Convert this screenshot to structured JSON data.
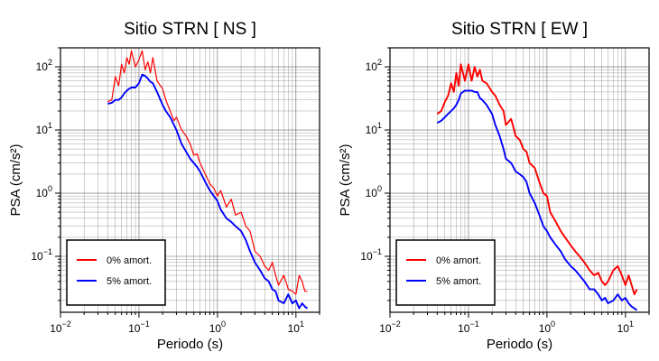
{
  "chart_data": [
    {
      "type": "line",
      "title": "Sitio STRN [ NS ]",
      "xlabel": "Periodo (s)",
      "ylabel": "PSA (cm/s²)",
      "xscale": "log",
      "yscale": "log",
      "xlim": [
        0.01,
        20
      ],
      "ylim": [
        0.013,
        200
      ],
      "x_ticks": [
        "10^-2",
        "10^-1",
        "10^0",
        "10^1"
      ],
      "y_ticks": [
        "10^-1",
        "10^0",
        "10^1",
        "10^2"
      ],
      "grid": true,
      "legend": "bottom-left",
      "series": [
        {
          "name": "0% amort.",
          "color": "#ff0000",
          "x": [
            0.04,
            0.045,
            0.05,
            0.055,
            0.06,
            0.065,
            0.07,
            0.075,
            0.08,
            0.09,
            0.1,
            0.11,
            0.12,
            0.13,
            0.14,
            0.15,
            0.17,
            0.2,
            0.22,
            0.25,
            0.28,
            0.3,
            0.35,
            0.4,
            0.45,
            0.5,
            0.55,
            0.6,
            0.7,
            0.8,
            0.9,
            1.0,
            1.1,
            1.3,
            1.5,
            1.7,
            2.0,
            2.3,
            2.6,
            3.0,
            3.5,
            4.0,
            4.5,
            5.0,
            5.5,
            6.0,
            7.0,
            8.0,
            9.0,
            10.0,
            11.0,
            12.0,
            13.0,
            14.0
          ],
          "values": [
            28,
            30,
            70,
            50,
            110,
            80,
            140,
            110,
            180,
            100,
            130,
            180,
            90,
            120,
            80,
            140,
            60,
            45,
            30,
            20,
            14,
            16,
            10,
            8,
            6,
            4,
            4.2,
            3,
            2,
            1.4,
            1.2,
            0.9,
            1.1,
            0.6,
            0.8,
            0.45,
            0.5,
            0.3,
            0.25,
            0.12,
            0.1,
            0.07,
            0.06,
            0.08,
            0.05,
            0.035,
            0.05,
            0.03,
            0.028,
            0.025,
            0.05,
            0.04,
            0.028,
            0.028
          ]
        },
        {
          "name": "5% amort.",
          "color": "#0000ff",
          "x": [
            0.04,
            0.045,
            0.05,
            0.055,
            0.06,
            0.065,
            0.07,
            0.075,
            0.08,
            0.09,
            0.1,
            0.11,
            0.12,
            0.13,
            0.14,
            0.15,
            0.17,
            0.2,
            0.22,
            0.25,
            0.28,
            0.3,
            0.35,
            0.4,
            0.45,
            0.5,
            0.55,
            0.6,
            0.7,
            0.8,
            0.9,
            1.0,
            1.1,
            1.3,
            1.5,
            1.7,
            2.0,
            2.3,
            2.6,
            3.0,
            3.5,
            4.0,
            4.5,
            5.0,
            5.5,
            6.0,
            7.0,
            8.0,
            9.0,
            10.0,
            11.0,
            12.0,
            13.0,
            14.0
          ],
          "values": [
            26,
            27,
            30,
            30,
            33,
            38,
            42,
            45,
            47,
            47,
            55,
            75,
            72,
            65,
            58,
            55,
            40,
            25,
            20,
            16,
            12,
            10,
            6,
            4.5,
            3.5,
            3,
            2.6,
            2.2,
            1.5,
            1.1,
            0.9,
            0.75,
            0.55,
            0.4,
            0.35,
            0.3,
            0.25,
            0.18,
            0.12,
            0.08,
            0.06,
            0.045,
            0.04,
            0.03,
            0.028,
            0.02,
            0.018,
            0.025,
            0.018,
            0.02,
            0.015,
            0.018,
            0.016,
            0.015
          ]
        }
      ]
    },
    {
      "type": "line",
      "title": "Sitio STRN [ EW ]",
      "xlabel": "Periodo (s)",
      "ylabel": "PSA (cm/s²)",
      "xscale": "log",
      "yscale": "log",
      "xlim": [
        0.01,
        20
      ],
      "ylim": [
        0.013,
        200
      ],
      "x_ticks": [
        "10^-2",
        "10^-1",
        "10^0",
        "10^1"
      ],
      "y_ticks": [
        "10^-1",
        "10^0",
        "10^1",
        "10^2"
      ],
      "grid": true,
      "legend": "bottom-left",
      "series": [
        {
          "name": "0% amort.",
          "color": "#ff0000",
          "x": [
            0.04,
            0.045,
            0.05,
            0.055,
            0.06,
            0.065,
            0.07,
            0.075,
            0.08,
            0.09,
            0.1,
            0.11,
            0.12,
            0.13,
            0.14,
            0.15,
            0.17,
            0.2,
            0.22,
            0.25,
            0.28,
            0.3,
            0.35,
            0.4,
            0.45,
            0.5,
            0.55,
            0.6,
            0.7,
            0.8,
            0.9,
            1.0,
            1.1,
            1.3,
            1.5,
            1.7,
            2.0,
            2.3,
            2.6,
            3.0,
            3.5,
            4.0,
            4.5,
            5.0,
            5.5,
            6.0,
            7.0,
            8.0,
            9.0,
            10.0,
            11.0,
            12.0,
            13.0,
            14.0
          ],
          "values": [
            18,
            20,
            28,
            35,
            55,
            40,
            80,
            50,
            110,
            60,
            110,
            60,
            100,
            70,
            90,
            60,
            55,
            40,
            35,
            25,
            20,
            12,
            15,
            8,
            7,
            5,
            4.5,
            3,
            2.5,
            1.5,
            1.0,
            0.9,
            0.5,
            0.35,
            0.25,
            0.2,
            0.15,
            0.12,
            0.1,
            0.08,
            0.06,
            0.05,
            0.055,
            0.04,
            0.035,
            0.04,
            0.06,
            0.07,
            0.05,
            0.035,
            0.05,
            0.035,
            0.025,
            0.03
          ]
        },
        {
          "name": "5% amort.",
          "color": "#0000ff",
          "x": [
            0.04,
            0.045,
            0.05,
            0.055,
            0.06,
            0.065,
            0.07,
            0.075,
            0.08,
            0.09,
            0.1,
            0.11,
            0.12,
            0.13,
            0.14,
            0.15,
            0.17,
            0.2,
            0.22,
            0.25,
            0.28,
            0.3,
            0.35,
            0.4,
            0.45,
            0.5,
            0.55,
            0.6,
            0.7,
            0.8,
            0.9,
            1.0,
            1.1,
            1.3,
            1.5,
            1.7,
            2.0,
            2.3,
            2.6,
            3.0,
            3.5,
            4.0,
            4.5,
            5.0,
            5.5,
            6.0,
            7.0,
            8.0,
            9.0,
            10.0,
            11.0,
            12.0,
            13.0,
            14.0
          ],
          "values": [
            13,
            14,
            16,
            18,
            20,
            22,
            25,
            30,
            38,
            42,
            42,
            42,
            40,
            40,
            32,
            30,
            25,
            18,
            12,
            8,
            5,
            3.5,
            3,
            2.2,
            2,
            1.8,
            1.5,
            1.0,
            0.7,
            0.45,
            0.3,
            0.25,
            0.2,
            0.15,
            0.12,
            0.09,
            0.07,
            0.06,
            0.05,
            0.04,
            0.03,
            0.03,
            0.025,
            0.02,
            0.022,
            0.018,
            0.02,
            0.025,
            0.02,
            0.022,
            0.018,
            0.016,
            0.015,
            0.014
          ]
        }
      ]
    }
  ]
}
